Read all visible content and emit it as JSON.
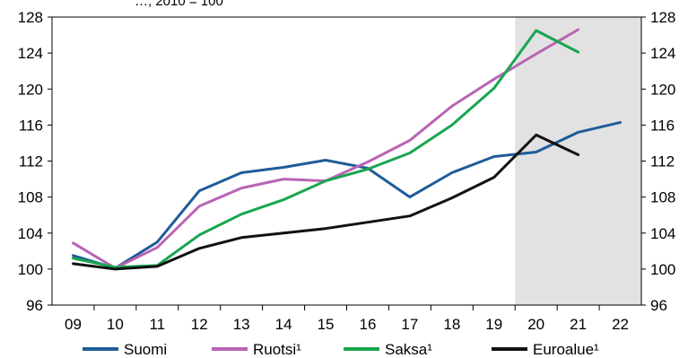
{
  "chart_data": {
    "type": "line",
    "categories": [
      "09",
      "10",
      "11",
      "12",
      "13",
      "14",
      "15",
      "16",
      "17",
      "18",
      "19",
      "20",
      "21",
      "22"
    ],
    "ylim": [
      96,
      128
    ],
    "yticks": [
      96,
      100,
      104,
      108,
      112,
      116,
      120,
      124,
      128
    ],
    "yticks_right": [
      96,
      100,
      104,
      108,
      112,
      116,
      120,
      124,
      128
    ],
    "shaded_region": {
      "from": "20",
      "to": "22",
      "color": "#e2e2e2"
    },
    "series": [
      {
        "name": "Suomi",
        "color": "#1f5c99",
        "values": [
          101.5,
          100.1,
          103.0,
          108.7,
          110.7,
          111.3,
          112.1,
          111.2,
          108.0,
          110.7,
          112.5,
          113.0,
          115.2,
          116.3
        ]
      },
      {
        "name": "Ruotsi¹",
        "color": "#b964b4",
        "values": [
          102.9,
          100.1,
          102.4,
          107.0,
          109.0,
          110.0,
          109.8,
          111.9,
          114.3,
          118.1,
          121.1,
          123.9,
          126.6,
          null
        ]
      },
      {
        "name": "Saksa¹",
        "color": "#18a650",
        "values": [
          101.2,
          100.2,
          100.4,
          103.8,
          106.1,
          107.7,
          109.8,
          111.1,
          112.9,
          116.0,
          120.1,
          126.5,
          124.1,
          null
        ]
      },
      {
        "name": "Euroalue¹",
        "color": "#111111",
        "values": [
          100.6,
          100.0,
          100.3,
          102.3,
          103.5,
          104.0,
          104.5,
          105.2,
          105.9,
          107.9,
          110.2,
          114.9,
          112.7,
          null
        ]
      }
    ],
    "partial_title": "…, 2010 = 100"
  }
}
